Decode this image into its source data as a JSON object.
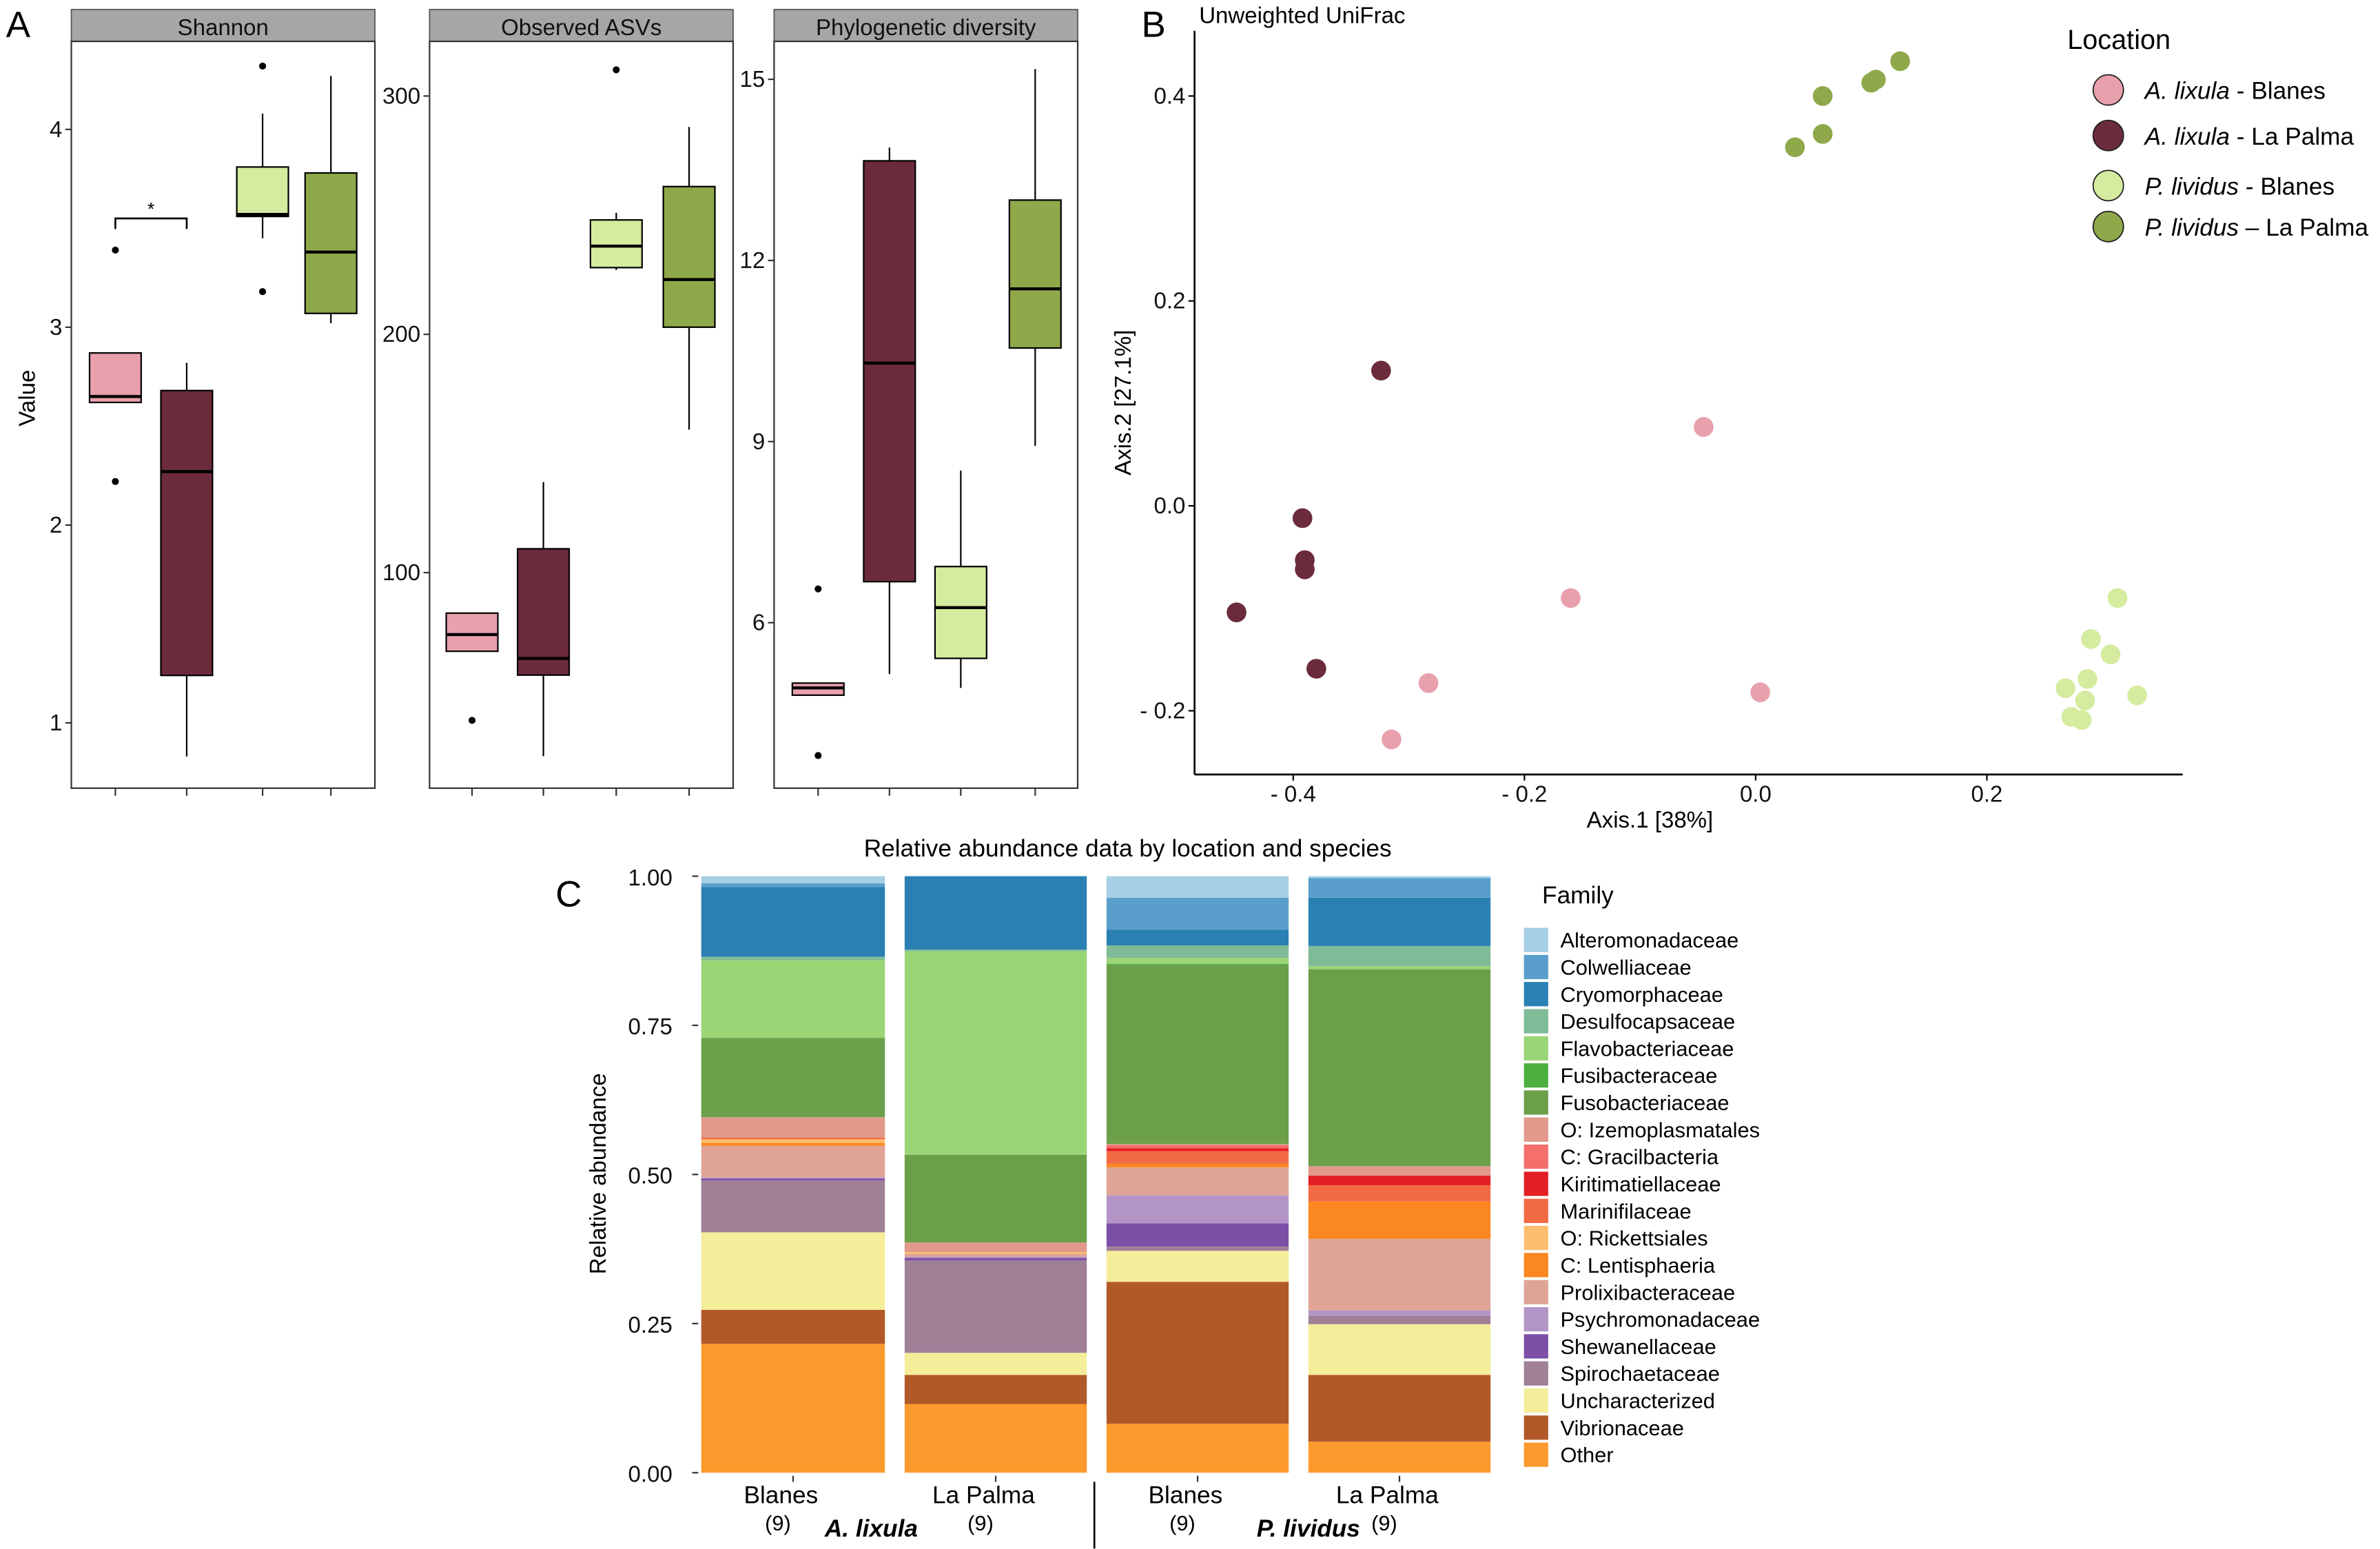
{
  "panel_labels": {
    "a": "A",
    "b": "B",
    "c": "C"
  },
  "chart_data": [
    {
      "type": "boxplot",
      "panel": "A",
      "ylabel": "Value",
      "group_colors": [
        "#e8a0ad",
        "#6b2b3b",
        "#d5eb9f",
        "#8fa84a"
      ],
      "groups": [
        "A. lixula - Blanes",
        "A. lixula - La Palma",
        "P. lividus - Blanes",
        "P. lividus - La Palma"
      ],
      "facets": [
        {
          "title": "Shannon",
          "ylim": [
            0.67,
            4.44
          ],
          "yticks": [
            1,
            2,
            3,
            4
          ],
          "ytick_labels": [
            "1",
            "2",
            "3",
            "4"
          ],
          "boxes": [
            {
              "q1": 2.62,
              "median": 2.65,
              "q3": 2.87,
              "whisker_low": 2.62,
              "whisker_high": 2.87,
              "outliers": [
                3.39,
                2.22
              ]
            },
            {
              "q1": 1.24,
              "median": 2.27,
              "q3": 2.68,
              "whisker_low": 0.83,
              "whisker_high": 2.82,
              "outliers": []
            },
            {
              "q1": 3.56,
              "median": 3.57,
              "q3": 3.81,
              "whisker_low": 3.45,
              "whisker_high": 4.08,
              "outliers": [
                4.32,
                3.18
              ]
            },
            {
              "q1": 3.07,
              "median": 3.38,
              "q3": 3.78,
              "whisker_low": 3.02,
              "whisker_high": 4.27,
              "outliers": []
            }
          ],
          "significance": {
            "groups": [
              0,
              1
            ],
            "level": 3.55,
            "label": "*"
          }
        },
        {
          "title": "Observed ASVs",
          "ylim": [
            9.6,
            323
          ],
          "yticks": [
            100,
            200,
            300
          ],
          "ytick_labels": [
            "100",
            "200",
            "300"
          ],
          "boxes": [
            {
              "q1": 67,
              "median": 74,
              "q3": 83,
              "whisker_low": 67,
              "whisker_high": 83,
              "outliers": [
                38
              ]
            },
            {
              "q1": 57,
              "median": 64,
              "q3": 110,
              "whisker_low": 23,
              "whisker_high": 138,
              "outliers": []
            },
            {
              "q1": 228,
              "median": 237,
              "q3": 248,
              "whisker_low": 227,
              "whisker_high": 251,
              "outliers": [
                311
              ]
            },
            {
              "q1": 203,
              "median": 223,
              "q3": 262,
              "whisker_low": 160,
              "whisker_high": 287,
              "outliers": []
            }
          ]
        },
        {
          "title": "Phylogenetic diversity",
          "ylim": [
            3.26,
            15.63
          ],
          "yticks": [
            6,
            9,
            12,
            15
          ],
          "ytick_labels": [
            "6",
            "9",
            "12",
            "15"
          ],
          "boxes": [
            {
              "q1": 4.8,
              "median": 4.92,
              "q3": 5.0,
              "whisker_low": 4.8,
              "whisker_high": 5.0,
              "outliers": [
                6.56,
                3.8
              ]
            },
            {
              "q1": 6.68,
              "median": 10.3,
              "q3": 13.65,
              "whisker_low": 5.15,
              "whisker_high": 13.87,
              "outliers": []
            },
            {
              "q1": 5.41,
              "median": 6.25,
              "q3": 6.93,
              "whisker_low": 4.92,
              "whisker_high": 8.52,
              "outliers": []
            },
            {
              "q1": 10.55,
              "median": 11.53,
              "q3": 13.0,
              "whisker_low": 8.93,
              "whisker_high": 15.17,
              "outliers": []
            }
          ]
        }
      ]
    },
    {
      "type": "scatter",
      "panel": "B",
      "title": "Unweighted UniFrac",
      "xlabel": "Axis.1 [38%]",
      "ylabel": "Axis.2 [27.1%]",
      "xlim": [
        -0.485,
        0.37
      ],
      "ylim": [
        -0.263,
        0.46
      ],
      "xticks": [
        -0.4,
        -0.2,
        0.0,
        0.2
      ],
      "xtick_labels": [
        "- 0.4",
        "- 0.2",
        "0.0",
        "0.2"
      ],
      "yticks": [
        -0.2,
        0.0,
        0.2,
        0.4
      ],
      "ytick_labels": [
        "- 0.2",
        "0.0",
        "0.2",
        "0.4"
      ],
      "legend": {
        "title": "Location",
        "position": "top-right",
        "entries": [
          {
            "species": "A. lixula",
            "rest": " - Blanes",
            "color": "#e8a0ad"
          },
          {
            "species": "A. lixula",
            "rest": " - La Palma",
            "color": "#6b2b3b"
          },
          {
            "species": "P. lividus",
            "rest": " - Blanes",
            "color": "#d5eb9f"
          },
          {
            "species": "P. lividus",
            "rest": " – La Palma",
            "color": "#8fa84a"
          }
        ]
      },
      "series": [
        {
          "name": "A. lixula - Blanes",
          "points": [
            [
              -0.045,
              0.077
            ],
            [
              -0.16,
              -0.09
            ],
            [
              -0.283,
              -0.173
            ],
            [
              -0.315,
              -0.228
            ],
            [
              0.004,
              -0.182
            ]
          ]
        },
        {
          "name": "A. lixula - La Palma",
          "points": [
            [
              -0.324,
              0.132
            ],
            [
              -0.392,
              -0.012
            ],
            [
              -0.39,
              -0.053
            ],
            [
              -0.39,
              -0.062
            ],
            [
              -0.449,
              -0.104
            ],
            [
              -0.38,
              -0.159
            ]
          ]
        },
        {
          "name": "P. lividus - Blanes",
          "points": [
            [
              0.313,
              -0.09
            ],
            [
              0.29,
              -0.13
            ],
            [
              0.307,
              -0.145
            ],
            [
              0.287,
              -0.169
            ],
            [
              0.268,
              -0.178
            ],
            [
              0.285,
              -0.19
            ],
            [
              0.33,
              -0.185
            ],
            [
              0.273,
              -0.206
            ],
            [
              0.282,
              -0.209
            ]
          ]
        },
        {
          "name": "P. lividus - La Palma",
          "points": [
            [
              0.034,
              0.35
            ],
            [
              0.058,
              0.4
            ],
            [
              0.058,
              0.363
            ],
            [
              0.1,
              0.413
            ],
            [
              0.104,
              0.416
            ],
            [
              0.125,
              0.434
            ]
          ]
        }
      ]
    },
    {
      "type": "bar",
      "stacked": true,
      "panel": "C",
      "title": "Relative abundance data by location and species",
      "ylabel": "Relative abundance",
      "ylim": [
        0,
        1
      ],
      "yticks": [
        0,
        0.25,
        0.5,
        0.75,
        1.0
      ],
      "ytick_labels": [
        "0.00",
        "0.25",
        "0.50",
        "0.75",
        "1.00"
      ],
      "categories": [
        {
          "location": "Blanes",
          "n": "(9)"
        },
        {
          "location": "La Palma",
          "n": "(9)"
        },
        {
          "location": "Blanes",
          "n": "(9)"
        },
        {
          "location": "La Palma",
          "n": "(9)"
        }
      ],
      "species_labels": [
        "A. lixula",
        "P. lividus"
      ],
      "legend": {
        "title": "Family",
        "position": "right"
      },
      "families": [
        {
          "name": "Alteromonadaceae",
          "color": "#a6cfe6",
          "values": [
            0.012,
            0,
            0.036,
            0.003
          ]
        },
        {
          "name": "Colwelliaceae",
          "color": "#5a9fcb",
          "values": [
            0.006,
            0,
            0.054,
            0.033
          ]
        },
        {
          "name": "Cryomorphaceae",
          "color": "#2b80b3",
          "values": [
            0.117,
            0.123,
            0.026,
            0.081
          ]
        },
        {
          "name": "Desulfocapsaceae",
          "color": "#7fbb96",
          "values": [
            0.006,
            0.003,
            0.021,
            0.034
          ]
        },
        {
          "name": "Flavobacteriaceae",
          "color": "#9ad576",
          "values": [
            0.13,
            0.341,
            0.01,
            0.005
          ]
        },
        {
          "name": "Fusibacteraceae",
          "color": "#4caf3f",
          "values": [
            0,
            0,
            0.002,
            0
          ]
        },
        {
          "name": "Fusobacteriaceae",
          "color": "#6b9f4a",
          "values": [
            0.133,
            0.147,
            0.3,
            0.33
          ]
        },
        {
          "name": "O: Izemoplasmatales",
          "color": "#e0998a",
          "values": [
            0.034,
            0.016,
            0.002,
            0.016
          ]
        },
        {
          "name": "C: Gracilbacteria",
          "color": "#f56f6d",
          "values": [
            0,
            0,
            0.005,
            0
          ]
        },
        {
          "name": "Kiritimatiellaceae",
          "color": "#e31f26",
          "values": [
            0,
            0,
            0.005,
            0.016
          ]
        },
        {
          "name": "Marinifilaceae",
          "color": "#f26a44",
          "values": [
            0.003,
            0,
            0.021,
            0.027
          ]
        },
        {
          "name": "O: Rickettsiales",
          "color": "#fdbe6f",
          "values": [
            0.006,
            0.003,
            0,
            0
          ]
        },
        {
          "name": "C: Lentisphaeria",
          "color": "#fb8720",
          "values": [
            0.005,
            0,
            0.006,
            0.063
          ]
        },
        {
          "name": "Prolixibacteraceae",
          "color": "#dfa496",
          "values": [
            0.053,
            0.005,
            0.047,
            0.12
          ]
        },
        {
          "name": "Psychromonadaceae",
          "color": "#b294c7",
          "values": [
            0.002,
            0.002,
            0.047,
            0.009
          ]
        },
        {
          "name": "Shewanellaceae",
          "color": "#7d4fa7",
          "values": [
            0.003,
            0.004,
            0.039,
            0
          ]
        },
        {
          "name": "Spirochaetaceae",
          "color": "#9f8097",
          "values": [
            0.087,
            0.155,
            0.007,
            0.014
          ]
        },
        {
          "name": "Uncharacterized",
          "color": "#f4ed9a",
          "values": [
            0.13,
            0.037,
            0.052,
            0.085
          ]
        },
        {
          "name": "Vibrionaceae",
          "color": "#b15928",
          "values": [
            0.057,
            0.049,
            0.238,
            0.112
          ]
        },
        {
          "name": "Other",
          "color": "#fd9a2d",
          "values": [
            0.216,
            0.115,
            0.082,
            0.052
          ]
        }
      ]
    }
  ]
}
